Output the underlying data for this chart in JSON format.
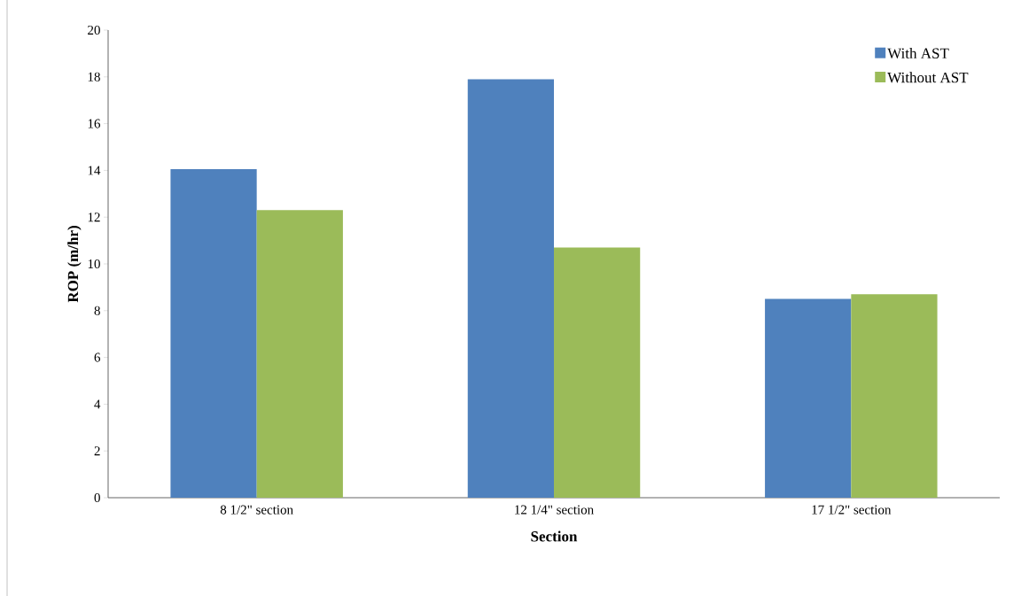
{
  "chart_data": {
    "type": "bar",
    "xlabel": "Section",
    "ylabel": "ROP (m/hr)",
    "categories": [
      "8 1/2\" section",
      "12 1/4\" section",
      "17 1/2\" section"
    ],
    "series": [
      {
        "name": "With AST",
        "color": "#4f81bd",
        "values": [
          14.05,
          17.9,
          8.5
        ]
      },
      {
        "name": "Without AST",
        "color": "#9bbb59",
        "values": [
          12.3,
          10.7,
          8.7
        ]
      }
    ],
    "ylim": [
      0,
      20
    ],
    "yticks": [
      0,
      2,
      4,
      6,
      8,
      10,
      12,
      14,
      16,
      18,
      20
    ],
    "grid": false,
    "legend": "top right"
  }
}
